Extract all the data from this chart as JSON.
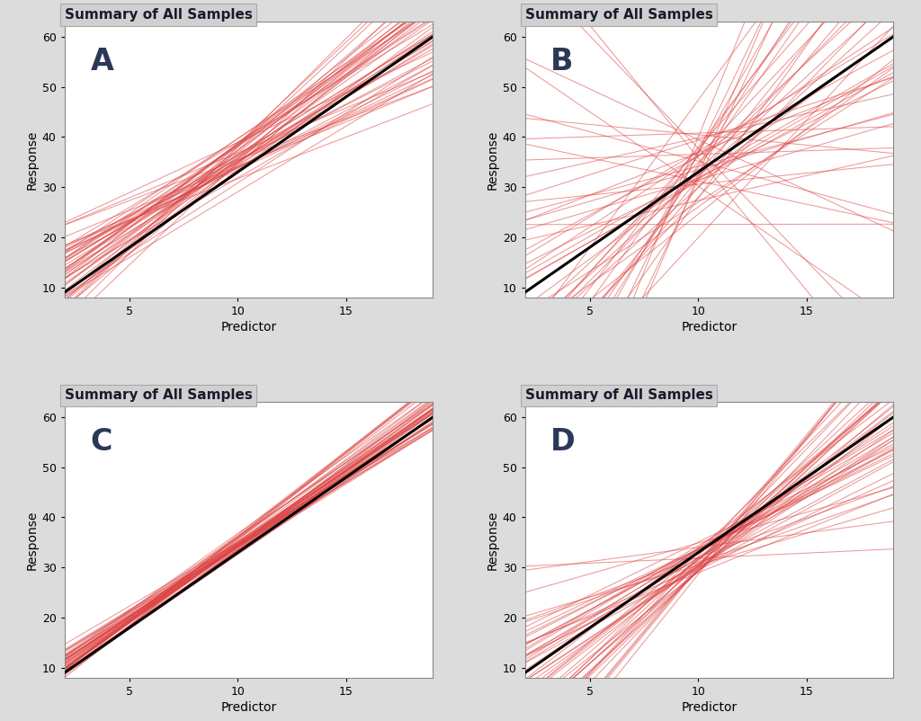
{
  "title": "Summary of All Samples",
  "xlabel": "Predictor",
  "ylabel": "Response",
  "xlim": [
    2,
    19
  ],
  "ylim": [
    8,
    63
  ],
  "xticks": [
    5,
    10,
    15
  ],
  "yticks": [
    10,
    20,
    30,
    40,
    50,
    60
  ],
  "labels": [
    "A",
    "B",
    "C",
    "D"
  ],
  "true_slope": 3.0,
  "true_intercept": 3.0,
  "x_start": 2,
  "x_end": 19,
  "background_color": "#dcdcdc",
  "plot_bg": "#ffffff",
  "line_color": "#dd4444",
  "true_line_color": "#000000",
  "n_lines": 50,
  "title_bg": "#d0d0d0",
  "label_color": "#2b3856",
  "panel_A": {
    "pivot_x": 9.0,
    "slope_std": 0.7,
    "intercept_noise": 2.5
  },
  "panel_B": {
    "pivot_x": 10.0,
    "slope_std": 3.5,
    "intercept_noise": 5.0
  },
  "panel_C": {
    "pivot_x": 9.5,
    "slope_std": 0.2,
    "intercept_noise": 1.0
  },
  "panel_D": {
    "pivot_x": 10.5,
    "slope_std": 1.0,
    "intercept_noise": 1.5
  }
}
